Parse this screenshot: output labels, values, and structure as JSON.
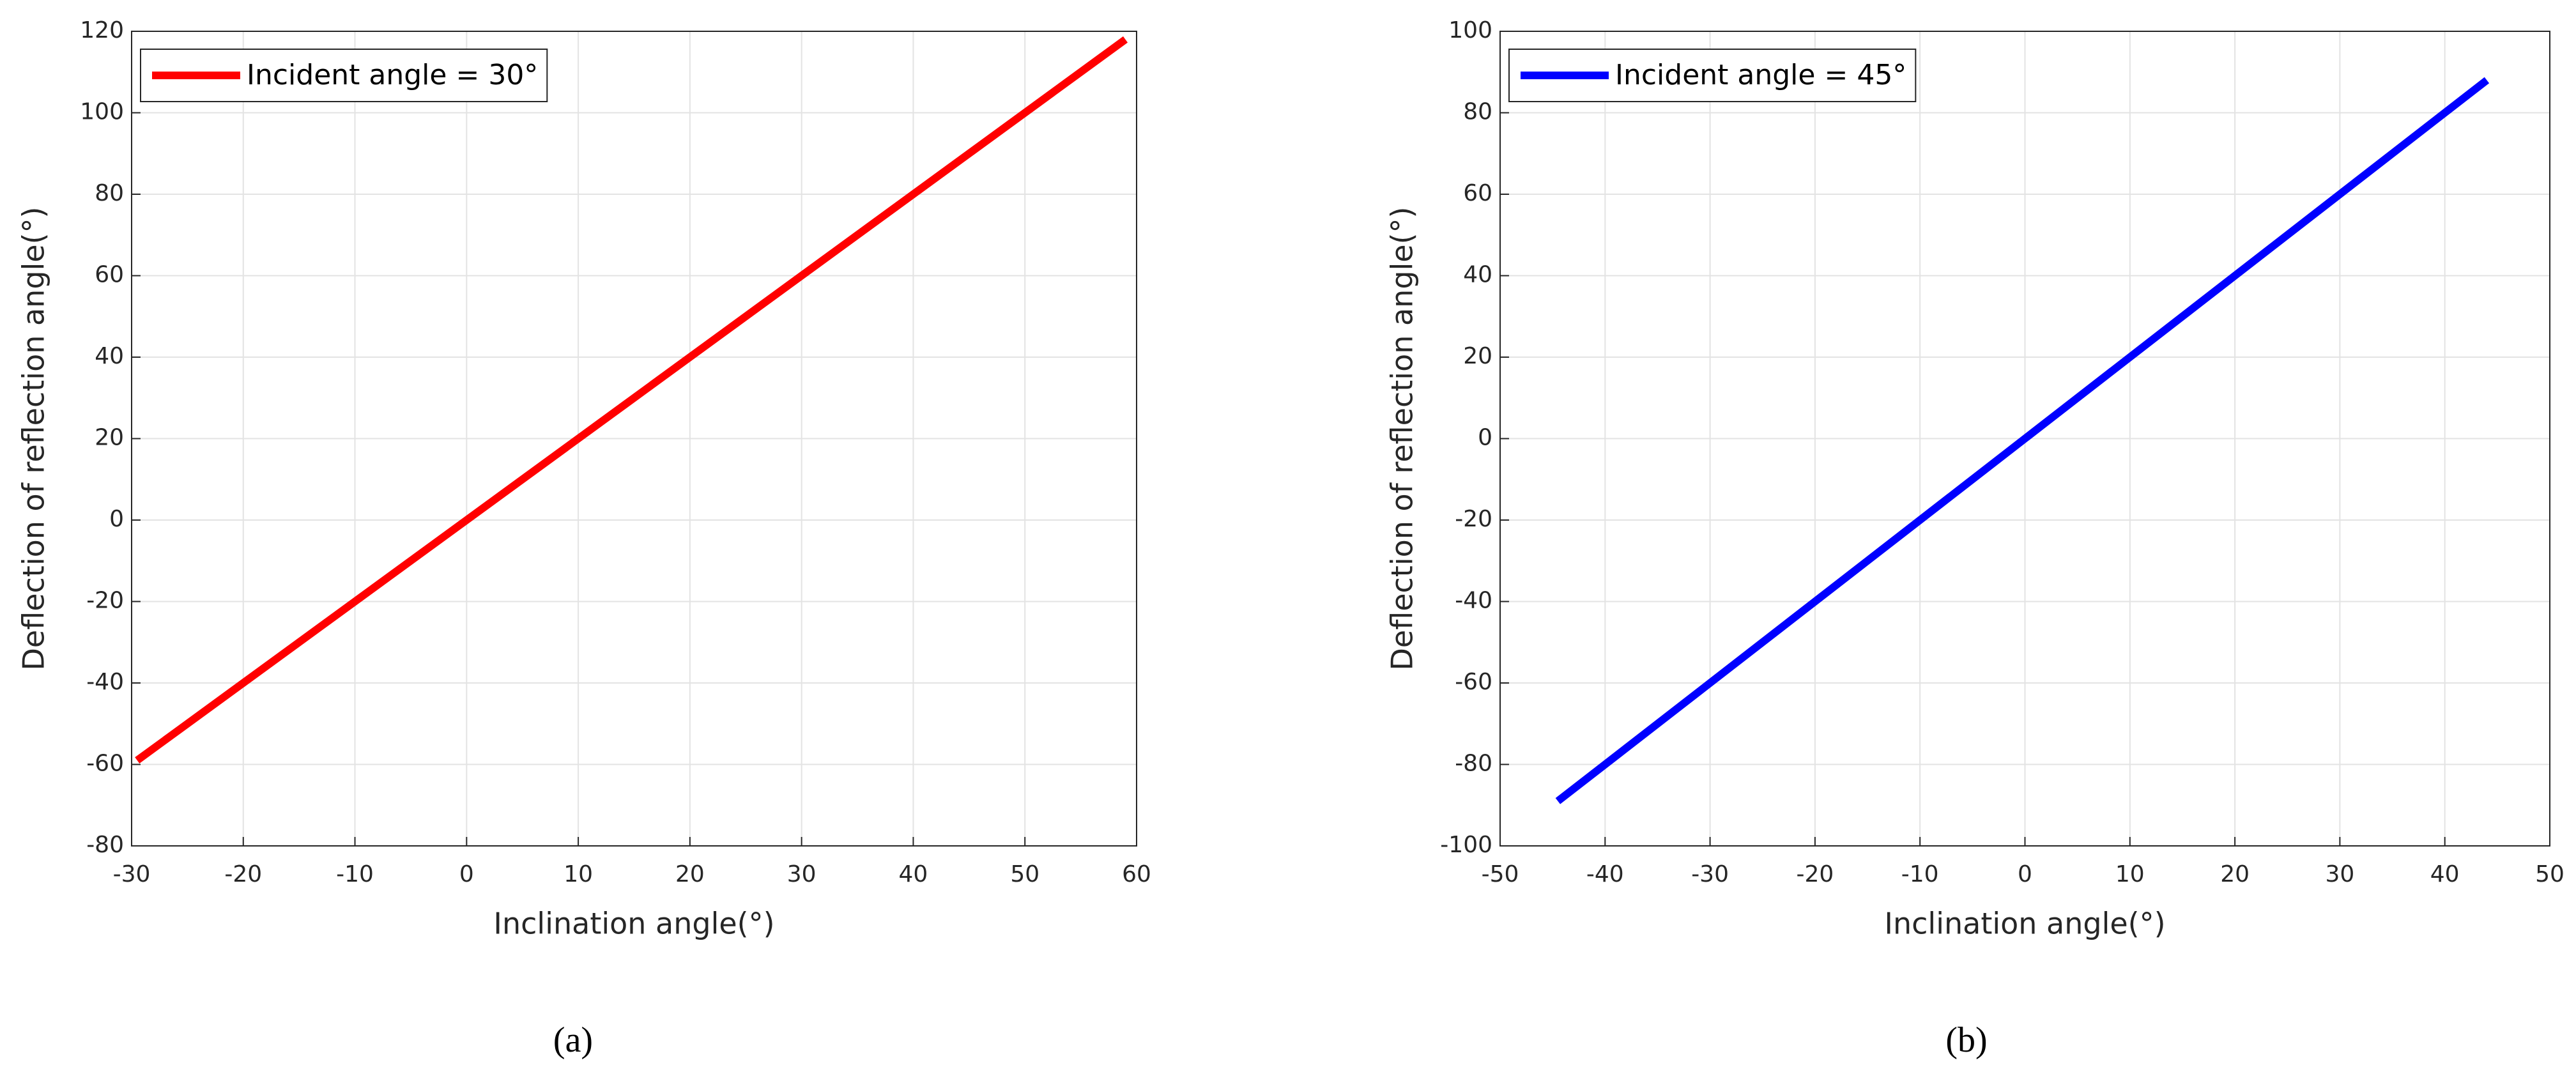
{
  "chart_data": [
    {
      "type": "line",
      "caption": "(a)",
      "xlabel": "Inclination angle(°)",
      "ylabel": "Deflection of reflection angle(°)",
      "x": [
        -29.5,
        59
      ],
      "series": [
        {
          "name": "Incident angle = 30°",
          "color": "#ff0000",
          "values": [
            -59,
            118
          ]
        }
      ],
      "xlim": [
        -30,
        60
      ],
      "xticks": [
        -30,
        -20,
        -10,
        0,
        10,
        20,
        30,
        40,
        50,
        60
      ],
      "ylim": [
        -80,
        120
      ],
      "yticks": [
        -80,
        -60,
        -40,
        -20,
        0,
        20,
        40,
        60,
        80,
        100,
        120
      ],
      "grid": true,
      "legend": "upper-left"
    },
    {
      "type": "line",
      "caption": "(b)",
      "xlabel": "Inclination angle(°)",
      "ylabel": "Deflection of reflection angle(°)",
      "x": [
        -44.5,
        44
      ],
      "series": [
        {
          "name": "Incident angle = 45°",
          "color": "#0000ff",
          "values": [
            -89,
            88
          ]
        }
      ],
      "xlim": [
        -50,
        50
      ],
      "xticks": [
        -50,
        -40,
        -30,
        -20,
        -10,
        0,
        10,
        20,
        30,
        40,
        50
      ],
      "ylim": [
        -100,
        100
      ],
      "yticks": [
        -100,
        -80,
        -60,
        -40,
        -20,
        0,
        20,
        40,
        60,
        80,
        100
      ],
      "grid": true,
      "legend": "upper-left"
    }
  ]
}
